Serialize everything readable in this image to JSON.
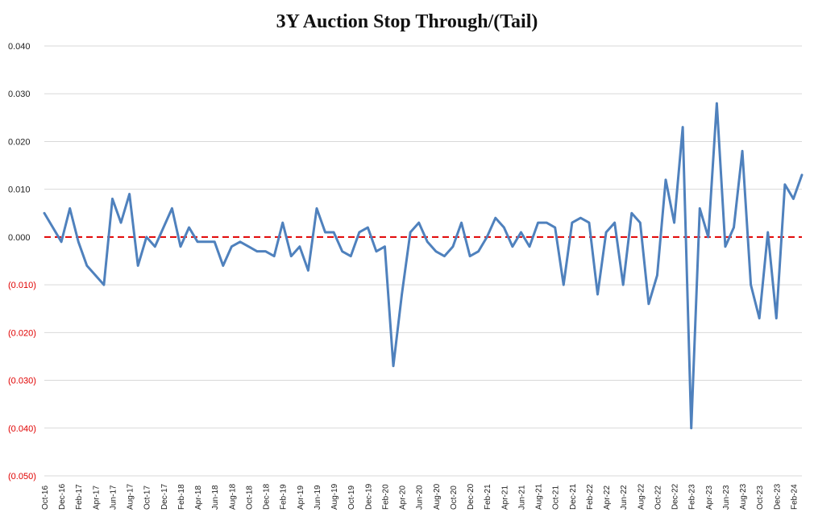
{
  "chart_data": {
    "type": "line",
    "title": "3Y Auction Stop Through/(Tail)",
    "xlabel": "",
    "ylabel": "",
    "ylim": [
      -0.05,
      0.04
    ],
    "yticks": [
      {
        "value": 0.04,
        "label": "0.040"
      },
      {
        "value": 0.03,
        "label": "0.030"
      },
      {
        "value": 0.02,
        "label": "0.020"
      },
      {
        "value": 0.01,
        "label": "0.010"
      },
      {
        "value": 0.0,
        "label": "0.000"
      },
      {
        "value": -0.01,
        "label": "(0.010)"
      },
      {
        "value": -0.02,
        "label": "(0.020)"
      },
      {
        "value": -0.03,
        "label": "(0.030)"
      },
      {
        "value": -0.04,
        "label": "(0.040)"
      },
      {
        "value": -0.05,
        "label": "(0.050)"
      }
    ],
    "grid": true,
    "colors": {
      "line": "#4F81BD",
      "zero_line": "#E00000",
      "positive_tick": "#222222",
      "negative_tick": "#E00000",
      "grid": "#D9D9D9"
    },
    "x": [
      "Oct-16",
      "Nov-16",
      "Dec-16",
      "Jan-17",
      "Feb-17",
      "Mar-17",
      "Apr-17",
      "May-17",
      "Jun-17",
      "Jul-17",
      "Aug-17",
      "Sep-17",
      "Oct-17",
      "Nov-17",
      "Dec-17",
      "Jan-18",
      "Feb-18",
      "Mar-18",
      "Apr-18",
      "May-18",
      "Jun-18",
      "Jul-18",
      "Aug-18",
      "Sep-18",
      "Oct-18",
      "Nov-18",
      "Dec-18",
      "Jan-19",
      "Feb-19",
      "Mar-19",
      "Apr-19",
      "May-19",
      "Jun-19",
      "Jul-19",
      "Aug-19",
      "Sep-19",
      "Oct-19",
      "Nov-19",
      "Dec-19",
      "Jan-20",
      "Feb-20",
      "Mar-20",
      "Apr-20",
      "May-20",
      "Jun-20",
      "Jul-20",
      "Aug-20",
      "Sep-20",
      "Oct-20",
      "Nov-20",
      "Dec-20",
      "Jan-21",
      "Feb-21",
      "Mar-21",
      "Apr-21",
      "May-21",
      "Jun-21",
      "Jul-21",
      "Aug-21",
      "Sep-21",
      "Oct-21",
      "Nov-21",
      "Dec-21",
      "Jan-22",
      "Feb-22",
      "Mar-22",
      "Apr-22",
      "May-22",
      "Jun-22",
      "Jul-22",
      "Aug-22",
      "Sep-22",
      "Oct-22",
      "Nov-22",
      "Dec-22",
      "Jan-23",
      "Feb-23",
      "Mar-23",
      "Apr-23",
      "May-23",
      "Jun-23",
      "Jul-23",
      "Aug-23",
      "Sep-23",
      "Oct-23",
      "Nov-23",
      "Dec-23",
      "Jan-24",
      "Feb-24",
      "Mar-24"
    ],
    "xtick_labels": [
      "Oct-16",
      "Dec-16",
      "Feb-17",
      "Apr-17",
      "Jun-17",
      "Aug-17",
      "Oct-17",
      "Dec-17",
      "Feb-18",
      "Apr-18",
      "Jun-18",
      "Aug-18",
      "Oct-18",
      "Dec-18",
      "Feb-19",
      "Apr-19",
      "Jun-19",
      "Aug-19",
      "Oct-19",
      "Dec-19",
      "Feb-20",
      "Apr-20",
      "Jun-20",
      "Aug-20",
      "Oct-20",
      "Dec-20",
      "Feb-21",
      "Apr-21",
      "Jun-21",
      "Aug-21",
      "Oct-21",
      "Dec-21",
      "Feb-22",
      "Apr-22",
      "Jun-22",
      "Aug-22",
      "Oct-22",
      "Dec-22",
      "Feb-23",
      "Apr-23",
      "Jun-23",
      "Aug-23",
      "Oct-23",
      "Dec-23",
      "Feb-24"
    ],
    "series": [
      {
        "values": [
          0.005,
          0.002,
          -0.001,
          0.006,
          -0.001,
          -0.006,
          -0.008,
          -0.01,
          0.008,
          0.003,
          0.009,
          -0.006,
          0.0,
          -0.002,
          0.002,
          0.006,
          -0.002,
          0.002,
          -0.001,
          -0.001,
          -0.001,
          -0.006,
          -0.002,
          -0.001,
          -0.002,
          -0.003,
          -0.003,
          -0.004,
          0.003,
          -0.004,
          -0.002,
          -0.007,
          0.006,
          0.001,
          0.001,
          -0.003,
          -0.004,
          0.001,
          0.002,
          -0.003,
          -0.002,
          -0.027,
          -0.012,
          0.001,
          0.003,
          -0.001,
          -0.003,
          -0.004,
          -0.002,
          0.003,
          -0.004,
          -0.003,
          0.0,
          0.004,
          0.002,
          -0.002,
          0.001,
          -0.002,
          0.003,
          0.003,
          0.002,
          -0.01,
          0.003,
          0.004,
          0.003,
          -0.012,
          0.001,
          0.003,
          -0.01,
          0.005,
          0.003,
          -0.014,
          -0.008,
          0.012,
          0.003,
          0.023,
          -0.04,
          0.006,
          0.0,
          0.028,
          -0.002,
          0.002,
          0.018,
          -0.01,
          -0.017,
          0.001,
          -0.017,
          0.011,
          0.008,
          0.013
        ]
      }
    ]
  }
}
